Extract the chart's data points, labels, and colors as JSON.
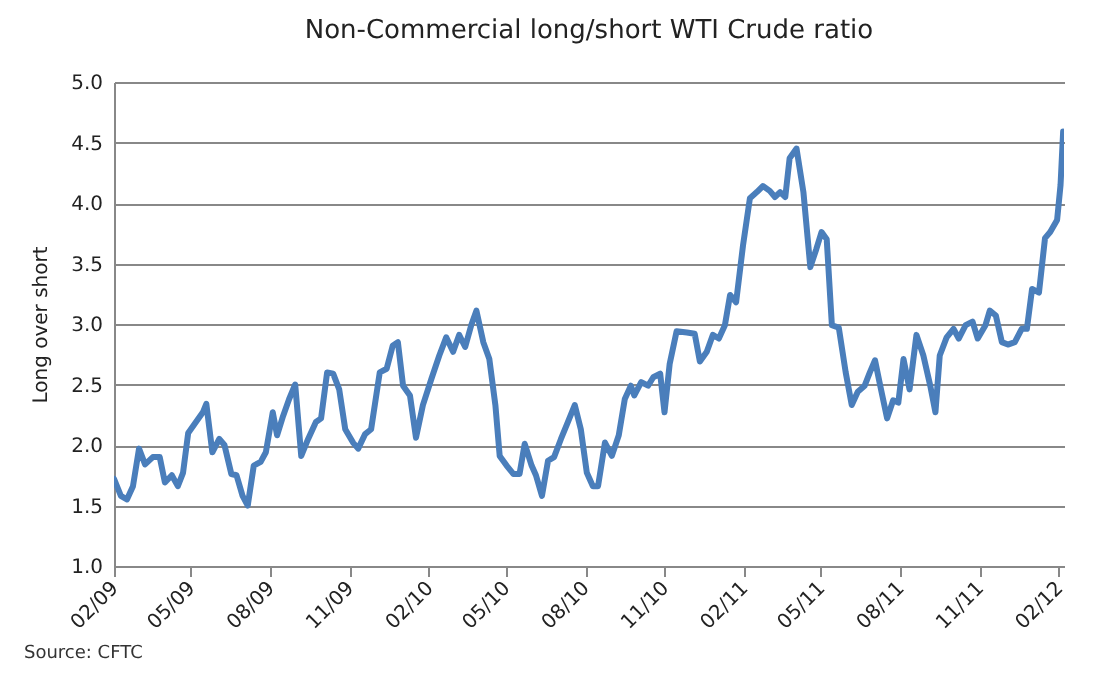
{
  "chart_data": {
    "type": "line",
    "title": "Non-Commercial long/short WTI Crude ratio",
    "ylabel": "Long over short",
    "annotations": [
      "Source: CFTC"
    ],
    "x": [
      "2009-02-01",
      "2009-02-09",
      "2009-02-16",
      "2009-02-23",
      "2009-03-02",
      "2009-03-09",
      "2009-03-18",
      "2009-03-26",
      "2009-04-01",
      "2009-04-09",
      "2009-04-16",
      "2009-04-22",
      "2009-04-28",
      "2009-05-07",
      "2009-05-15",
      "2009-05-19",
      "2009-05-26",
      "2009-06-03",
      "2009-06-09",
      "2009-06-17",
      "2009-06-23",
      "2009-06-30",
      "2009-07-06",
      "2009-07-13",
      "2009-07-21",
      "2009-07-27",
      "2009-08-04",
      "2009-08-09",
      "2009-08-16",
      "2009-08-23",
      "2009-08-30",
      "2009-09-06",
      "2009-09-14",
      "2009-09-23",
      "2009-09-29",
      "2009-10-06",
      "2009-10-13",
      "2009-10-20",
      "2009-10-27",
      "2009-11-05",
      "2009-11-11",
      "2009-11-19",
      "2009-11-26",
      "2009-12-06",
      "2009-12-14",
      "2009-12-21",
      "2009-12-27",
      "2010-01-02",
      "2010-01-10",
      "2010-01-17",
      "2010-01-25",
      "2010-02-04",
      "2010-02-13",
      "2010-02-21",
      "2010-03-01",
      "2010-03-08",
      "2010-03-15",
      "2010-03-22",
      "2010-03-28",
      "2010-04-05",
      "2010-04-12",
      "2010-04-19",
      "2010-04-24",
      "2010-05-02",
      "2010-05-10",
      "2010-05-17",
      "2010-05-23",
      "2010-05-31",
      "2010-06-05",
      "2010-06-12",
      "2010-06-19",
      "2010-06-26",
      "2010-07-04",
      "2010-07-12",
      "2010-07-20",
      "2010-07-27",
      "2010-08-03",
      "2010-08-10",
      "2010-08-16",
      "2010-08-24",
      "2010-09-01",
      "2010-09-09",
      "2010-09-16",
      "2010-09-23",
      "2010-09-27",
      "2010-10-05",
      "2010-10-13",
      "2010-10-19",
      "2010-10-27",
      "2010-11-01",
      "2010-11-07",
      "2010-11-15",
      "2010-11-27",
      "2010-12-06",
      "2010-12-12",
      "2010-12-20",
      "2010-12-27",
      "2011-01-03",
      "2011-01-10",
      "2011-01-16",
      "2011-01-23",
      "2011-01-31",
      "2011-02-08",
      "2011-02-16",
      "2011-02-23",
      "2011-03-03",
      "2011-03-09",
      "2011-03-15",
      "2011-03-21",
      "2011-03-26",
      "2011-04-03",
      "2011-04-11",
      "2011-04-19",
      "2011-04-26",
      "2011-05-02",
      "2011-05-08",
      "2011-05-14",
      "2011-05-22",
      "2011-05-30",
      "2011-06-06",
      "2011-06-13",
      "2011-06-21",
      "2011-06-27",
      "2011-07-03",
      "2011-07-09",
      "2011-07-17",
      "2011-07-24",
      "2011-07-30",
      "2011-08-05",
      "2011-08-12",
      "2011-08-20",
      "2011-08-28",
      "2011-09-05",
      "2011-09-11",
      "2011-09-16",
      "2011-09-24",
      "2011-10-02",
      "2011-10-08",
      "2011-10-16",
      "2011-10-24",
      "2011-10-30",
      "2011-11-08",
      "2011-11-13",
      "2011-11-20",
      "2011-11-27",
      "2011-12-04",
      "2011-12-12",
      "2011-12-20",
      "2011-12-26",
      "2012-01-01",
      "2012-01-09",
      "2012-01-16",
      "2012-01-22",
      "2012-01-30",
      "2012-02-03",
      "2012-02-06"
    ],
    "series": [
      {
        "color": "#4a7ebb",
        "values": [
          1.72,
          1.58,
          1.55,
          1.66,
          1.97,
          1.84,
          1.9,
          1.9,
          1.69,
          1.75,
          1.66,
          1.77,
          2.1,
          2.19,
          2.27,
          2.34,
          1.94,
          2.05,
          2.0,
          1.76,
          1.75,
          1.58,
          1.5,
          1.83,
          1.86,
          1.94,
          2.27,
          2.08,
          2.24,
          2.38,
          2.5,
          1.91,
          2.05,
          2.19,
          2.22,
          2.6,
          2.59,
          2.46,
          2.13,
          2.02,
          1.97,
          2.09,
          2.13,
          2.6,
          2.63,
          2.82,
          2.85,
          2.49,
          2.41,
          2.06,
          2.33,
          2.55,
          2.74,
          2.89,
          2.77,
          2.91,
          2.81,
          2.99,
          3.11,
          2.85,
          2.71,
          2.33,
          1.91,
          1.83,
          1.76,
          1.76,
          2.01,
          1.83,
          1.75,
          1.58,
          1.87,
          1.9,
          2.05,
          2.19,
          2.33,
          2.13,
          1.77,
          1.66,
          1.66,
          2.02,
          1.91,
          2.08,
          2.38,
          2.49,
          2.41,
          2.52,
          2.49,
          2.56,
          2.59,
          2.27,
          2.67,
          2.94,
          2.93,
          2.92,
          2.69,
          2.77,
          2.91,
          2.88,
          2.99,
          3.24,
          3.18,
          3.65,
          4.04,
          4.09,
          4.14,
          4.1,
          4.05,
          4.09,
          4.05,
          4.37,
          4.45,
          4.09,
          3.47,
          3.62,
          3.76,
          3.7,
          2.99,
          2.97,
          2.6,
          2.33,
          2.44,
          2.49,
          2.6,
          2.7,
          2.49,
          2.22,
          2.37,
          2.35,
          2.71,
          2.46,
          2.91,
          2.74,
          2.49,
          2.27,
          2.74,
          2.89,
          2.96,
          2.88,
          2.99,
          3.02,
          2.88,
          2.99,
          3.11,
          3.07,
          2.85,
          2.83,
          2.85,
          2.96,
          2.96,
          3.29,
          3.26,
          3.71,
          3.76,
          3.86,
          4.15,
          4.59
        ]
      }
    ],
    "xlim": [
      "2009-02-01",
      "2012-02-07"
    ],
    "xticks": [
      {
        "value": "2009-02-01",
        "label": "02/09"
      },
      {
        "value": "2009-05-01",
        "label": "05/09"
      },
      {
        "value": "2009-08-01",
        "label": "08/09"
      },
      {
        "value": "2009-11-01",
        "label": "11/09"
      },
      {
        "value": "2010-02-01",
        "label": "02/10"
      },
      {
        "value": "2010-05-01",
        "label": "05/10"
      },
      {
        "value": "2010-08-01",
        "label": "08/10"
      },
      {
        "value": "2010-11-01",
        "label": "11/10"
      },
      {
        "value": "2011-02-01",
        "label": "02/11"
      },
      {
        "value": "2011-05-01",
        "label": "05/11"
      },
      {
        "value": "2011-08-01",
        "label": "08/11"
      },
      {
        "value": "2011-11-01",
        "label": "11/11"
      },
      {
        "value": "2012-02-01",
        "label": "02/12"
      }
    ],
    "ylim": [
      1.0,
      5.0
    ],
    "yticks": [
      {
        "value": 1,
        "label": "1.0"
      },
      {
        "value": 1.5,
        "label": "1.5"
      },
      {
        "value": 2,
        "label": "2.0"
      },
      {
        "value": 2.5,
        "label": "2.5"
      },
      {
        "value": 3,
        "label": "3.0"
      },
      {
        "value": 3.5,
        "label": "3.5"
      },
      {
        "value": 4,
        "label": "4.0"
      },
      {
        "value": 4.5,
        "label": "4.5"
      },
      {
        "value": 5,
        "label": "5.0"
      }
    ],
    "grid": "y",
    "marker": "none",
    "line_style": "solid"
  }
}
